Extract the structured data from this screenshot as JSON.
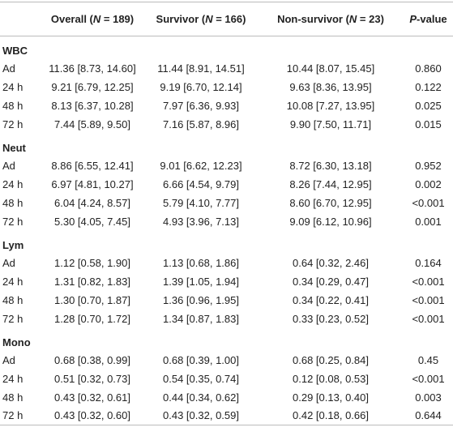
{
  "table": {
    "header": [
      {
        "pre": "Overall (",
        "italic": "N",
        "post": " = 189)"
      },
      {
        "pre": "Survivor (",
        "italic": "N",
        "post": " = 166)"
      },
      {
        "pre": "Non-survivor (",
        "italic": "N",
        "post": " = 23)"
      },
      {
        "italic": "P",
        "post": "-value"
      }
    ],
    "groups": [
      {
        "name": "WBC",
        "rows": [
          [
            "Ad",
            "11.36 [8.73, 14.60]",
            "11.44 [8.91, 14.51]",
            "10.44 [8.07, 15.45]",
            "0.860"
          ],
          [
            "24 h",
            "9.21 [6.79, 12.25]",
            "9.19 [6.70, 12.14]",
            "9.63 [8.36, 13.95]",
            "0.122"
          ],
          [
            "48 h",
            "8.13 [6.37, 10.28]",
            "7.97 [6.36, 9.93]",
            "10.08 [7.27, 13.95]",
            "0.025"
          ],
          [
            "72 h",
            "7.44 [5.89, 9.50]",
            "7.16 [5.87, 8.96]",
            "9.90 [7.50, 11.71]",
            "0.015"
          ]
        ]
      },
      {
        "name": "Neut",
        "rows": [
          [
            "Ad",
            "8.86 [6.55, 12.41]",
            "9.01 [6.62, 12.23]",
            "8.72 [6.30, 13.18]",
            "0.952"
          ],
          [
            "24 h",
            "6.97 [4.81, 10.27]",
            "6.66 [4.54, 9.79]",
            "8.26 [7.44, 12.95]",
            "0.002"
          ],
          [
            "48 h",
            "6.04 [4.24, 8.57]",
            "5.79 [4.10, 7.77]",
            "8.60 [6.70, 12.95]",
            "<0.001"
          ],
          [
            "72 h",
            "5.30 [4.05, 7.45]",
            "4.93 [3.96, 7.13]",
            "9.09 [6.12, 10.96]",
            "0.001"
          ]
        ]
      },
      {
        "name": "Lym",
        "rows": [
          [
            "Ad",
            "1.12 [0.58, 1.90]",
            "1.13 [0.68, 1.86]",
            "0.64 [0.32, 2.46]",
            "0.164"
          ],
          [
            "24 h",
            "1.31 [0.82, 1.83]",
            "1.39 [1.05, 1.94]",
            "0.34 [0.29, 0.47]",
            "<0.001"
          ],
          [
            "48 h",
            "1.30 [0.70, 1.87]",
            "1.36 [0.96, 1.95]",
            "0.34 [0.22, 0.41]",
            "<0.001"
          ],
          [
            "72 h",
            "1.28 [0.70, 1.72]",
            "1.34 [0.87, 1.83]",
            "0.33 [0.23, 0.52]",
            "<0.001"
          ]
        ]
      },
      {
        "name": "Mono",
        "rows": [
          [
            "Ad",
            "0.68 [0.38, 0.99]",
            "0.68 [0.39, 1.00]",
            "0.68 [0.25, 0.84]",
            "0.45"
          ],
          [
            "24 h",
            "0.51 [0.32, 0.73]",
            "0.54 [0.35, 0.74]",
            "0.12 [0.08, 0.53]",
            "<0.001"
          ],
          [
            "48 h",
            "0.43 [0.32, 0.61]",
            "0.44 [0.34, 0.62]",
            "0.29 [0.13, 0.40]",
            "0.003"
          ],
          [
            "72 h",
            "0.43 [0.32, 0.60]",
            "0.43 [0.32, 0.59]",
            "0.42 [0.18, 0.66]",
            "0.644"
          ]
        ]
      }
    ]
  }
}
